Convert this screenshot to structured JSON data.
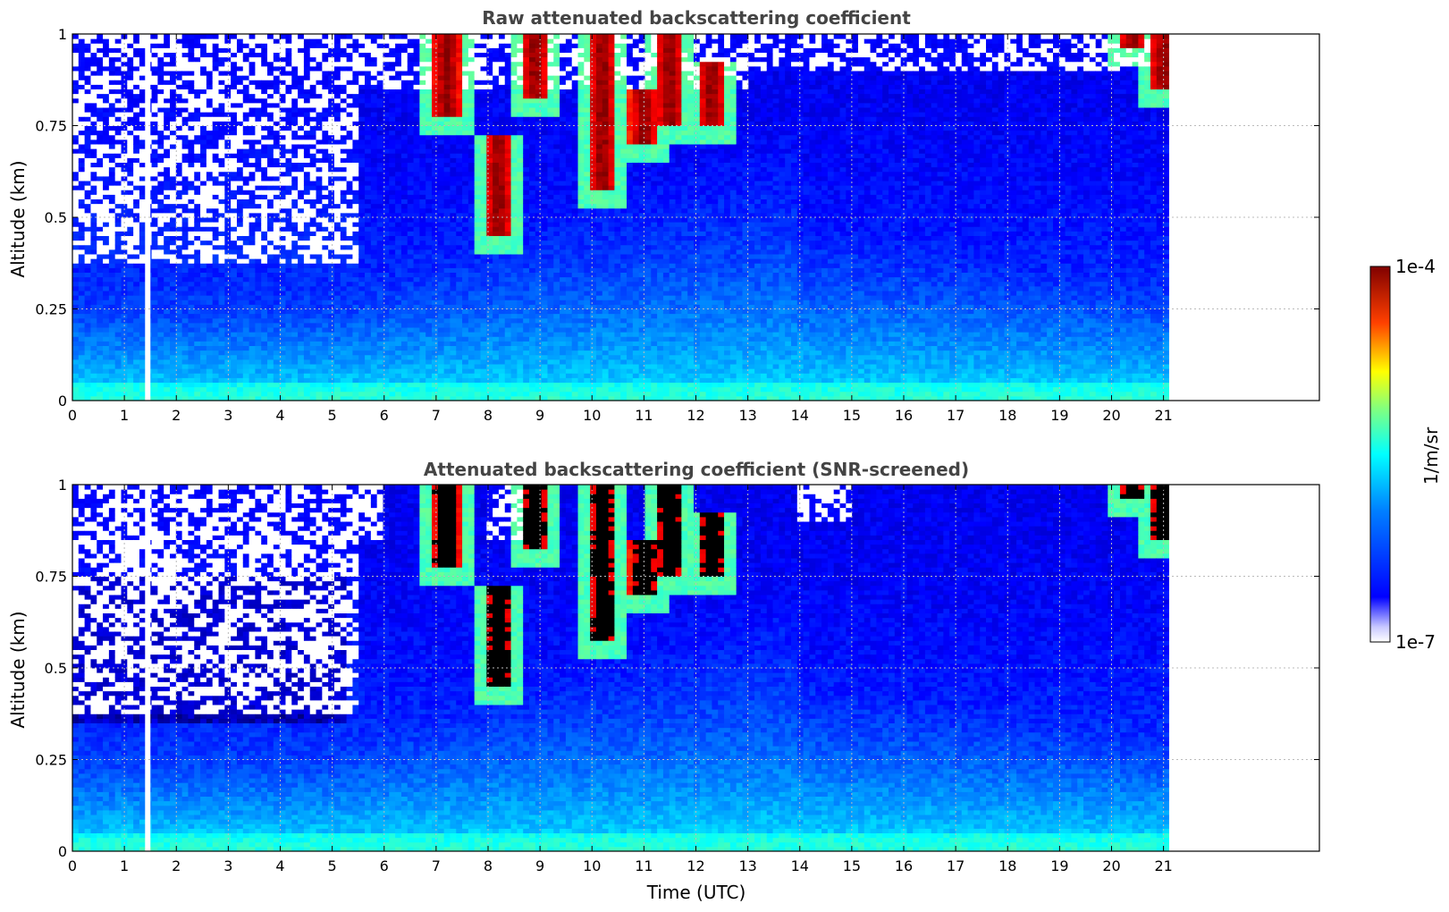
{
  "chart_data": [
    {
      "type": "heatmap",
      "title": "Raw attenuated backscattering coefficient",
      "xlabel": "",
      "ylabel": "Altitude (km)",
      "x_ticks": [
        "0",
        "1",
        "2",
        "3",
        "4",
        "5",
        "6",
        "7",
        "8",
        "9",
        "10",
        "11",
        "12",
        "13",
        "14",
        "15",
        "16",
        "17",
        "18",
        "19",
        "20",
        "21"
      ],
      "y_ticks": [
        "0",
        "0.25",
        "0.5",
        "0.75",
        "1"
      ],
      "xlim": [
        0,
        24
      ],
      "ylim": [
        0,
        1
      ],
      "data_x_extent": [
        0,
        21.1
      ],
      "gap_x": 1.45,
      "grid": true,
      "clouds": [
        {
          "t": 7.2,
          "h0": 0.78,
          "h1": 1.0
        },
        {
          "t": 8.2,
          "h0": 0.45,
          "h1": 0.72
        },
        {
          "t": 8.9,
          "h0": 0.82,
          "h1": 1.0
        },
        {
          "t": 10.2,
          "h0": 0.58,
          "h1": 1.0
        },
        {
          "t": 11.0,
          "h0": 0.7,
          "h1": 0.85
        },
        {
          "t": 11.5,
          "h0": 0.75,
          "h1": 1.0
        },
        {
          "t": 12.3,
          "h0": 0.75,
          "h1": 0.92
        },
        {
          "t": 20.4,
          "h0": 0.96,
          "h1": 1.0
        },
        {
          "t": 21.0,
          "h0": 0.85,
          "h1": 1.0
        }
      ]
    },
    {
      "type": "heatmap",
      "title": "Attenuated backscattering coefficient (SNR-screened)",
      "xlabel": "Time (UTC)",
      "ylabel": "Altitude (km)",
      "x_ticks": [
        "0",
        "1",
        "2",
        "3",
        "4",
        "5",
        "6",
        "7",
        "8",
        "9",
        "10",
        "11",
        "12",
        "13",
        "14",
        "15",
        "16",
        "17",
        "18",
        "19",
        "20",
        "21"
      ],
      "y_ticks": [
        "0",
        "0.25",
        "0.5",
        "0.75",
        "1"
      ],
      "xlim": [
        0,
        24
      ],
      "ylim": [
        0,
        1
      ],
      "data_x_extent": [
        0,
        21.1
      ],
      "gap_x": 1.45,
      "grid": true,
      "clouds": [
        {
          "t": 7.2,
          "h0": 0.78,
          "h1": 1.0
        },
        {
          "t": 8.2,
          "h0": 0.45,
          "h1": 0.72
        },
        {
          "t": 8.9,
          "h0": 0.82,
          "h1": 1.0
        },
        {
          "t": 10.2,
          "h0": 0.58,
          "h1": 1.0
        },
        {
          "t": 11.0,
          "h0": 0.7,
          "h1": 0.85
        },
        {
          "t": 11.5,
          "h0": 0.75,
          "h1": 1.0
        },
        {
          "t": 12.3,
          "h0": 0.75,
          "h1": 0.92
        },
        {
          "t": 20.4,
          "h0": 0.96,
          "h1": 1.0
        },
        {
          "t": 21.0,
          "h0": 0.85,
          "h1": 1.0
        }
      ]
    }
  ],
  "colorbar": {
    "label": "1/m/sr",
    "max_label": "1e-4",
    "min_label": "1e-7",
    "colormap": "jet",
    "scale": "log"
  }
}
